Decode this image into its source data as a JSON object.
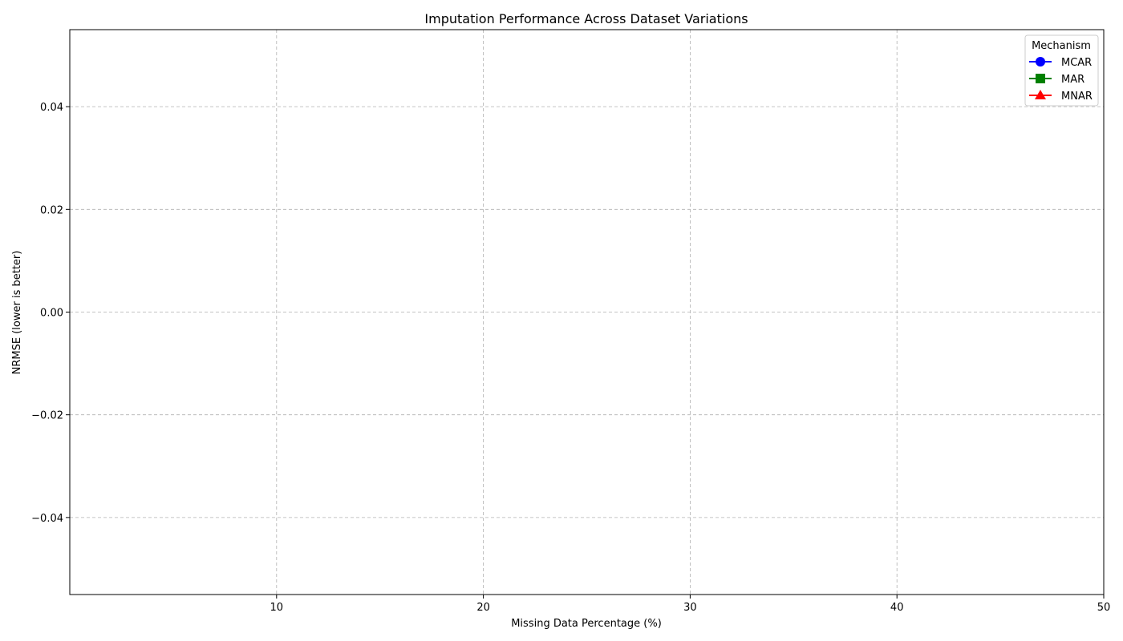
{
  "chart_data": {
    "type": "line",
    "title": "Imputation Performance Across Dataset Variations",
    "xlabel": "Missing Data Percentage (%)",
    "ylabel": "NRMSE (lower is better)",
    "xlim": [
      0,
      50
    ],
    "ylim": [
      -0.055,
      0.055
    ],
    "xticks": [
      10,
      20,
      30,
      40,
      50
    ],
    "xtick_labels": [
      "10",
      "20",
      "30",
      "40",
      "50"
    ],
    "yticks": [
      -0.04,
      -0.02,
      0.0,
      0.02,
      0.04
    ],
    "ytick_labels": [
      "−0.04",
      "−0.02",
      "0.00",
      "0.02",
      "0.04"
    ],
    "grid": true,
    "legend": {
      "title": "Mechanism",
      "placement": "top-right",
      "entries": [
        {
          "name": "MCAR",
          "color": "#0000ff",
          "marker": "circle"
        },
        {
          "name": "MAR",
          "color": "#008000",
          "marker": "square"
        },
        {
          "name": "MNAR",
          "color": "#ff0000",
          "marker": "triangle"
        }
      ]
    },
    "series": [
      {
        "name": "MCAR",
        "x": [],
        "values": []
      },
      {
        "name": "MAR",
        "x": [],
        "values": []
      },
      {
        "name": "MNAR",
        "x": [],
        "values": []
      }
    ]
  }
}
